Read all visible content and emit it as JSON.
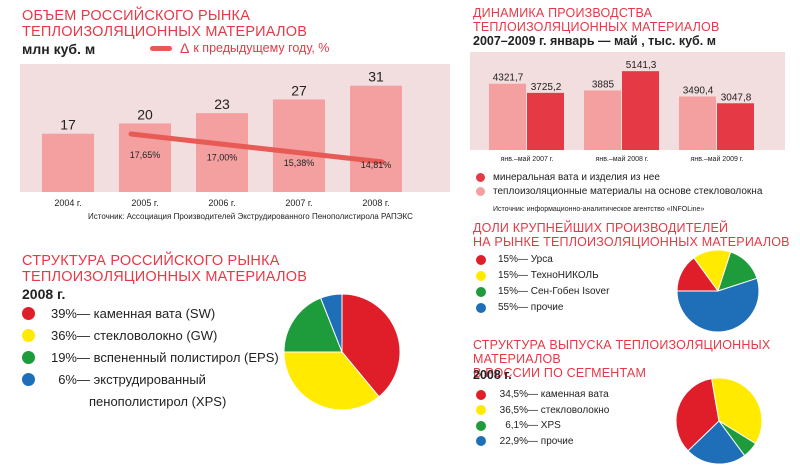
{
  "colors": {
    "accent_red": "#e63946",
    "pink": "#f4a0a0",
    "panel_bg": "#f2dede",
    "red": "#e01e2a",
    "yellow": "#ffea00",
    "green": "#1e9b3a",
    "blue": "#1e6fb8"
  },
  "chart_data": [
    {
      "type": "bar",
      "title": "ОБЪЕМ РОССИЙСКОГО РЫНКА\nТЕПЛОИЗОЛЯЦИОННЫХ МАТЕРИАЛОВ",
      "title_lines": [
        "ОБЪЕМ РОССИЙСКОГО РЫНКА",
        "ТЕПЛОИЗОЛЯЦИОННЫХ МАТЕРИАЛОВ"
      ],
      "ylabel": "млн куб. м",
      "categories": [
        "2004 г.",
        "2005 г.",
        "2006 г.",
        "2007 г.",
        "2008 г."
      ],
      "values": [
        17,
        20,
        23,
        27,
        31
      ],
      "value_labels": [
        "17",
        "20",
        "23",
        "27",
        "31"
      ],
      "ylim": [
        0,
        35
      ],
      "line_series": {
        "name": "Δ к предыдущему году, %",
        "legend_prefix": "Δ",
        "legend_text": "к предыдущему году, %",
        "labels": [
          "",
          "17,65%",
          "17,00%",
          "15,38%",
          "14,81%"
        ],
        "values": [
          null,
          17.65,
          17.0,
          15.38,
          14.81
        ]
      },
      "source": "Источник: Ассоциация Производителей Экструдированного Пенополистирола РАПЭКС"
    },
    {
      "type": "bar",
      "title": "ДИНАМИКА ПРОИЗВОДСТВА\nТЕПЛОИЗОЛЯЦИОННЫХ МАТЕРИАЛОВ",
      "title_lines": [
        "ДИНАМИКА ПРОИЗВОДСТВА",
        "ТЕПЛОИЗОЛЯЦИОННЫХ МАТЕРИАЛОВ"
      ],
      "subtitle": "2007–2009 г. январь — май , тыс. куб. м",
      "categories": [
        "янв.–май 2007 г.",
        "янв.–май 2008 г.",
        "янв.–май 2009 г."
      ],
      "ylim": [
        0,
        6000
      ],
      "series": [
        {
          "name": "теплоизоляционные материалы на основе стекловолокна",
          "values": [
            4321.7,
            3885,
            3490.4
          ],
          "labels": [
            "4321,7",
            "3885",
            "3490,4"
          ],
          "color": "#f4a0a0"
        },
        {
          "name": "минеральная вата и изделия из нее",
          "values": [
            3725.2,
            5141.3,
            3047.8
          ],
          "labels": [
            "3725,2",
            "5141,3",
            "3047,8"
          ],
          "color": "#e63946"
        }
      ],
      "legend": [
        {
          "label": "минеральная вата и изделия из нее",
          "color": "#e63946"
        },
        {
          "label": "теплоизоляционные материалы на основе стекловолокна",
          "color": "#f4a0a0"
        }
      ],
      "source": "Источник: информационно-аналитическое агентство «INFOLine»"
    },
    {
      "type": "pie",
      "title": "СТРУКТУРА РОССИЙСКОГО РЫНКА\nТЕПЛОИЗОЛЯЦИОННЫХ МАТЕРИАЛОВ",
      "title_lines": [
        "СТРУКТУРА РОССИЙСКОГО РЫНКА",
        "ТЕПЛОИЗОЛЯЦИОННЫХ МАТЕРИАЛОВ"
      ],
      "subtitle": "2008 г.",
      "slices": [
        {
          "value": 39,
          "pct": "39%",
          "label": "каменная вата (SW)",
          "color": "#e01e2a"
        },
        {
          "value": 36,
          "pct": "36%",
          "label": "стекловолокно (GW)",
          "color": "#ffea00"
        },
        {
          "value": 19,
          "pct": "19%",
          "label": "вспененный полистирол (EPS)",
          "color": "#1e9b3a"
        },
        {
          "value": 6,
          "pct": "6%",
          "label": "экструдированный",
          "label2": "пенополистирол (XPS)",
          "color": "#1e6fb8"
        }
      ]
    },
    {
      "type": "pie",
      "title": "ДОЛИ КРУПНЕЙШИХ ПРОИЗВОДИТЕЛЕЙ\nНА РЫНКЕ ТЕПЛОИЗОЛЯЦИОННЫХ МАТЕРИАЛОВ",
      "title_lines": [
        "ДОЛИ КРУПНЕЙШИХ ПРОИЗВОДИТЕЛЕЙ",
        "НА РЫНКЕ ТЕПЛОИЗОЛЯЦИОННЫХ МАТЕРИАЛОВ"
      ],
      "slices": [
        {
          "value": 15,
          "pct": "15%",
          "label": "Урса",
          "color": "#e01e2a"
        },
        {
          "value": 15,
          "pct": "15%",
          "label": "ТехноНИКОЛЬ",
          "color": "#ffea00"
        },
        {
          "value": 15,
          "pct": "15%",
          "label": "Сен-Гобен Isover",
          "color": "#1e9b3a"
        },
        {
          "value": 55,
          "pct": "55%",
          "label": "прочие",
          "color": "#1e6fb8"
        }
      ]
    },
    {
      "type": "pie",
      "title": "СТРУКТУРА ВЫПУСКА ТЕПЛОИЗОЛЯЦИОННЫХ МАТЕРИАЛОВ\nВ РОССИИ ПО СЕГМЕНТАМ",
      "title_lines": [
        "СТРУКТУРА ВЫПУСКА ТЕПЛОИЗОЛЯЦИОННЫХ МАТЕРИАЛОВ",
        "В РОССИИ ПО СЕГМЕНТАМ"
      ],
      "subtitle": "2008 г.",
      "slices": [
        {
          "value": 34.5,
          "pct": "34,5%",
          "label": "каменная вата",
          "color": "#e01e2a"
        },
        {
          "value": 36.5,
          "pct": "36,5%",
          "label": "стекловолокно",
          "color": "#ffea00"
        },
        {
          "value": 6.1,
          "pct": "6,1%",
          "label": "XPS",
          "color": "#1e9b3a"
        },
        {
          "value": 22.9,
          "pct": "22,9%",
          "label": "прочие",
          "color": "#1e6fb8"
        }
      ]
    }
  ]
}
